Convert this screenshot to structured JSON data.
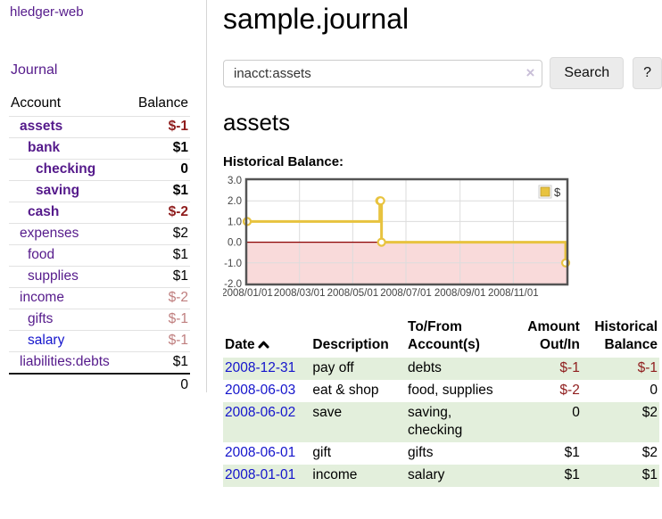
{
  "brand": "hledger-web",
  "sidebar": {
    "nav_journal": "Journal",
    "accounts_header": {
      "account": "Account",
      "balance": "Balance"
    },
    "accounts": [
      {
        "name": "assets",
        "depth": 1,
        "bold": true,
        "link_color": "purple",
        "balance": "$-1",
        "balance_tone": "neg"
      },
      {
        "name": "bank",
        "depth": 2,
        "bold": true,
        "link_color": "purple",
        "balance": "$1",
        "balance_tone": "pos"
      },
      {
        "name": "checking",
        "depth": 3,
        "bold": true,
        "link_color": "purple",
        "balance": "0",
        "balance_tone": "pos"
      },
      {
        "name": "saving",
        "depth": 3,
        "bold": true,
        "link_color": "purple",
        "balance": "$1",
        "balance_tone": "pos"
      },
      {
        "name": "cash",
        "depth": 2,
        "bold": true,
        "link_color": "purple",
        "balance": "$-2",
        "balance_tone": "neg"
      },
      {
        "name": "expenses",
        "depth": 1,
        "bold": false,
        "link_color": "purple",
        "balance": "$2",
        "balance_tone": "pos"
      },
      {
        "name": "food",
        "depth": 2,
        "bold": false,
        "link_color": "purple",
        "balance": "$1",
        "balance_tone": "pos"
      },
      {
        "name": "supplies",
        "depth": 2,
        "bold": false,
        "link_color": "purple",
        "balance": "$1",
        "balance_tone": "pos"
      },
      {
        "name": "income",
        "depth": 1,
        "bold": false,
        "link_color": "purple",
        "balance": "$-2",
        "balance_tone": "negsoft"
      },
      {
        "name": "gifts",
        "depth": 2,
        "bold": false,
        "link_color": "purple",
        "balance": "$-1",
        "balance_tone": "negsoft"
      },
      {
        "name": "salary",
        "depth": 2,
        "bold": false,
        "link_color": "blue",
        "balance": "$-1",
        "balance_tone": "negsoft"
      },
      {
        "name": "liabilities:debts",
        "depth": 1,
        "bold": false,
        "link_color": "purple",
        "balance": "$1",
        "balance_tone": "pos"
      }
    ],
    "total": "0"
  },
  "main": {
    "title": "sample.journal",
    "search": {
      "value": "inacct:assets",
      "clear_icon": "×",
      "button_label": "Search",
      "help_label": "?"
    },
    "account_heading": "assets",
    "chart_label": "Historical Balance:",
    "register": {
      "headers": {
        "date": "Date",
        "description": "Description",
        "accounts": "To/From Account(s)",
        "amount": "Amount Out/In",
        "balance": "Historical Balance"
      },
      "rows": [
        {
          "date": "2008-12-31",
          "description": "pay off",
          "accounts": "debts",
          "amount": "$-1",
          "amount_tone": "neg",
          "balance": "$-1",
          "balance_tone": "neg"
        },
        {
          "date": "2008-06-03",
          "description": "eat & shop",
          "accounts": "food, supplies",
          "amount": "$-2",
          "amount_tone": "neg",
          "balance": "0",
          "balance_tone": "pos"
        },
        {
          "date": "2008-06-02",
          "description": "save",
          "accounts": "saving, checking",
          "amount": "0",
          "amount_tone": "pos",
          "balance": "$2",
          "balance_tone": "pos"
        },
        {
          "date": "2008-06-01",
          "description": "gift",
          "accounts": "gifts",
          "amount": "$1",
          "amount_tone": "pos",
          "balance": "$2",
          "balance_tone": "pos"
        },
        {
          "date": "2008-01-01",
          "description": "income",
          "accounts": "salary",
          "amount": "$1",
          "amount_tone": "pos",
          "balance": "$1",
          "balance_tone": "pos"
        }
      ]
    }
  },
  "chart_data": {
    "type": "line",
    "title": "Historical Balance:",
    "step": true,
    "series": [
      {
        "name": "$",
        "points": [
          {
            "date": "2008-01-01",
            "day": 0,
            "value": 1.0
          },
          {
            "date": "2008-06-01",
            "day": 152,
            "value": 2.0
          },
          {
            "date": "2008-06-02",
            "day": 153,
            "value": 2.0
          },
          {
            "date": "2008-06-03",
            "day": 154,
            "value": 0.0
          },
          {
            "date": "2008-12-31",
            "day": 365,
            "value": -1.0
          }
        ]
      }
    ],
    "x_ticks": [
      {
        "day": 0,
        "label": "2008/01/01"
      },
      {
        "day": 60,
        "label": "2008/03/01"
      },
      {
        "day": 121,
        "label": "2008/05/01"
      },
      {
        "day": 182,
        "label": "2008/07/01"
      },
      {
        "day": 244,
        "label": "2008/09/01"
      },
      {
        "day": 305,
        "label": "2008/11/01"
      }
    ],
    "x_max_day": 366,
    "y_ticks": [
      {
        "value": 3,
        "label": "3.0"
      },
      {
        "value": 2,
        "label": "2.0"
      },
      {
        "value": 1,
        "label": "1.0"
      },
      {
        "value": 0,
        "label": "0.0"
      },
      {
        "value": -1,
        "label": "-1.0"
      },
      {
        "value": -2,
        "label": "-2.0"
      }
    ],
    "ylim": [
      -2,
      3
    ],
    "legend": {
      "label": "$",
      "position": "top-right"
    },
    "grid": true
  },
  "colors": {
    "link_purple": "#551a8b",
    "link_blue": "#1414cc",
    "negative": "#8f1d1d",
    "negative_soft": "#bf7e7e",
    "row_green": "#e3efdc",
    "chart_line": "#e8c33f",
    "chart_negative_bg": "#f9dada",
    "chart_zero_line": "#8b0000",
    "chart_border": "#545454",
    "chart_grid": "#dcdcdc",
    "tick_text": "#444444"
  }
}
